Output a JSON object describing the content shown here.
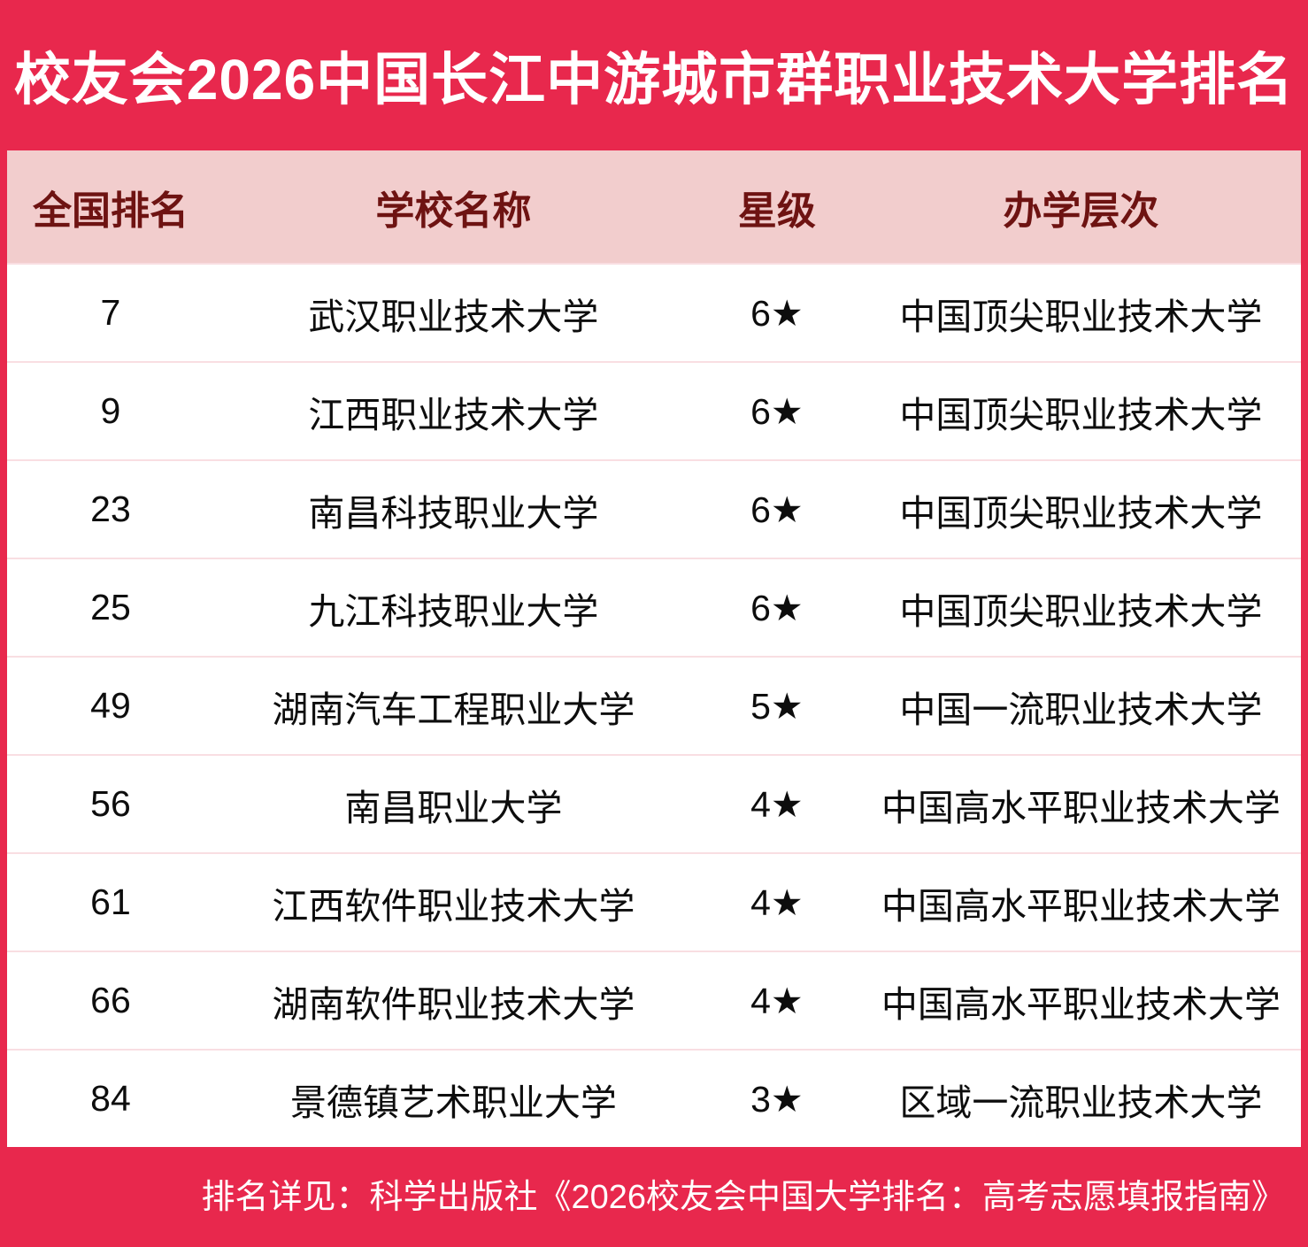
{
  "title": "校友会2026中国长江中游城市群职业技术大学排名",
  "colors": {
    "frame_red": "#E8284D",
    "header_bg": "#F2CDCD",
    "header_text": "#6E1312",
    "row_divider": "#F9DEE2",
    "body_text": "#0D0D0D",
    "title_text": "#FFFFFF"
  },
  "table": {
    "columns": {
      "rank": "全国排名",
      "school": "学校名称",
      "stars": "星级",
      "level": "办学层次"
    },
    "rows": [
      {
        "rank": "7",
        "school": "武汉职业技术大学",
        "stars": "6★",
        "level": "中国顶尖职业技术大学"
      },
      {
        "rank": "9",
        "school": "江西职业技术大学",
        "stars": "6★",
        "level": "中国顶尖职业技术大学"
      },
      {
        "rank": "23",
        "school": "南昌科技职业大学",
        "stars": "6★",
        "level": "中国顶尖职业技术大学"
      },
      {
        "rank": "25",
        "school": "九江科技职业大学",
        "stars": "6★",
        "level": "中国顶尖职业技术大学"
      },
      {
        "rank": "49",
        "school": "湖南汽车工程职业大学",
        "stars": "5★",
        "level": "中国一流职业技术大学"
      },
      {
        "rank": "56",
        "school": "南昌职业大学",
        "stars": "4★",
        "level": "中国高水平职业技术大学"
      },
      {
        "rank": "61",
        "school": "江西软件职业技术大学",
        "stars": "4★",
        "level": "中国高水平职业技术大学"
      },
      {
        "rank": "66",
        "school": "湖南软件职业技术大学",
        "stars": "4★",
        "level": "中国高水平职业技术大学"
      },
      {
        "rank": "84",
        "school": "景德镇艺术职业大学",
        "stars": "3★",
        "level": "区域一流职业技术大学"
      }
    ]
  },
  "footer": {
    "note": "排名详见：科学出版社《2026校友会中国大学排名：高考志愿填报指南》"
  },
  "chart_data": {
    "type": "table",
    "title": "校友会2026中国长江中游城市群职业技术大学排名",
    "columns": [
      "全国排名",
      "学校名称",
      "星级",
      "办学层次"
    ],
    "rows": [
      [
        "7",
        "武汉职业技术大学",
        "6★",
        "中国顶尖职业技术大学"
      ],
      [
        "9",
        "江西职业技术大学",
        "6★",
        "中国顶尖职业技术大学"
      ],
      [
        "23",
        "南昌科技职业大学",
        "6★",
        "中国顶尖职业技术大学"
      ],
      [
        "25",
        "九江科技职业大学",
        "6★",
        "中国顶尖职业技术大学"
      ],
      [
        "49",
        "湖南汽车工程职业大学",
        "5★",
        "中国一流职业技术大学"
      ],
      [
        "56",
        "南昌职业大学",
        "4★",
        "中国高水平职业技术大学"
      ],
      [
        "61",
        "江西软件职业技术大学",
        "4★",
        "中国高水平职业技术大学"
      ],
      [
        "66",
        "湖南软件职业技术大学",
        "4★",
        "中国高水平职业技术大学"
      ],
      [
        "84",
        "景德镇艺术职业大学",
        "3★",
        "区域一流职业技术大学"
      ]
    ],
    "source_note": "排名详见：科学出版社《2026校友会中国大学排名：高考志愿填报指南》"
  }
}
